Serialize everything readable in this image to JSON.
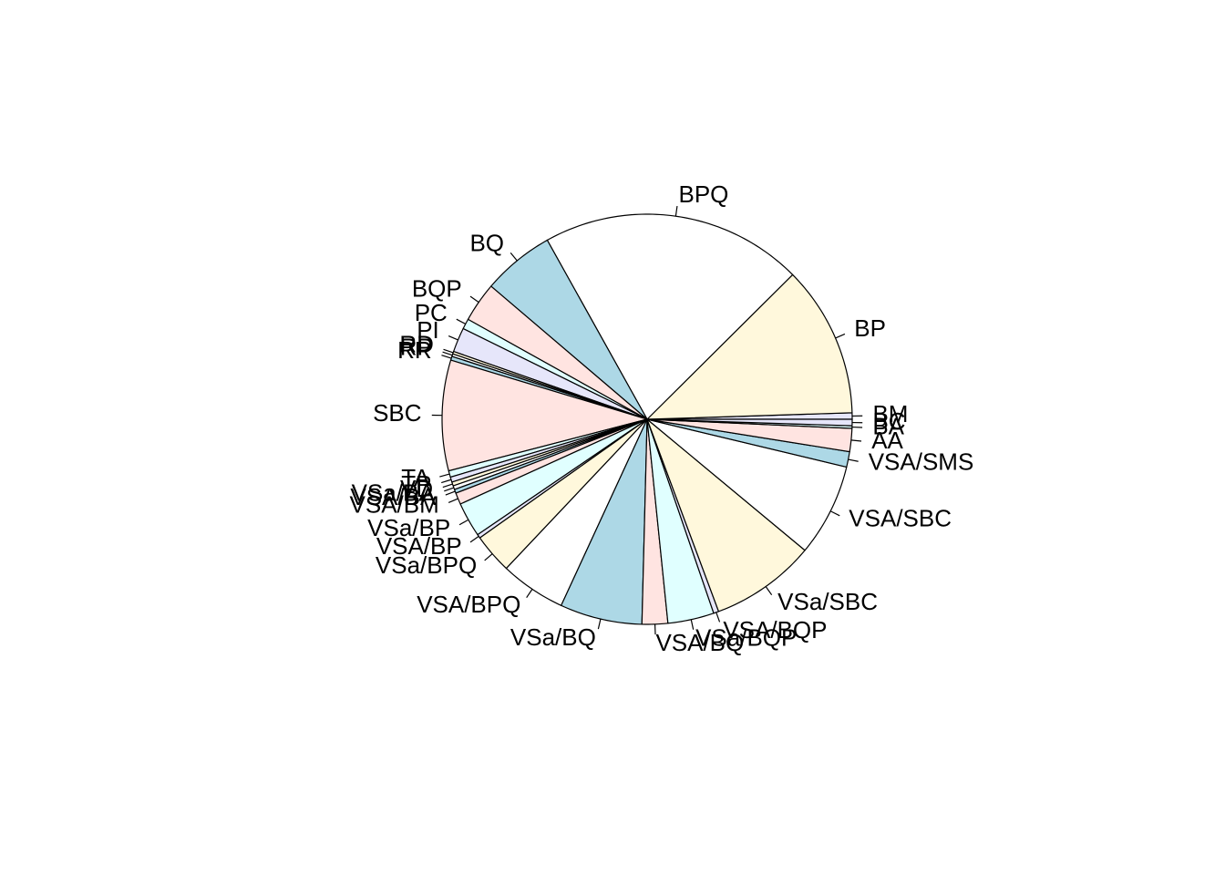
{
  "chart_data": {
    "type": "pie",
    "start_angle_deg": 0,
    "direction": "counterclockwise",
    "palette": [
      "#E6E6FA",
      "#FFF8DC",
      "#FFFFFF",
      "#ADD8E6",
      "#FFE4E1",
      "#E0FFFF"
    ],
    "slices": [
      {
        "label": "BM",
        "value": 0.5
      },
      {
        "label": "BP",
        "value": 11.8
      },
      {
        "label": "BPQ",
        "value": 20.4
      },
      {
        "label": "BQ",
        "value": 5.6
      },
      {
        "label": "BQP",
        "value": 3.1
      },
      {
        "label": "PC",
        "value": 0.8
      },
      {
        "label": "PI",
        "value": 1.9
      },
      {
        "label": "RD",
        "value": 0.2
      },
      {
        "label": "RP",
        "value": 0.2
      },
      {
        "label": "RR",
        "value": 0.3
      },
      {
        "label": "SBC",
        "value": 8.6
      },
      {
        "label": "TA",
        "value": 0.5
      },
      {
        "label": "TP",
        "value": 0.4
      },
      {
        "label": "VD",
        "value": 0.3
      },
      {
        "label": "VSa/BA",
        "value": 0.3
      },
      {
        "label": "VSA/BA",
        "value": 0.3
      },
      {
        "label": "VSA/BM",
        "value": 0.9
      },
      {
        "label": "VSa/BP",
        "value": 2.7
      },
      {
        "label": "VSA/BP",
        "value": 0.3
      },
      {
        "label": "VSa/BPQ",
        "value": 3.1
      },
      {
        "label": "VSA/BPQ",
        "value": 5.1
      },
      {
        "label": "VSa/BQ",
        "value": 6.4
      },
      {
        "label": "VSA/BQ",
        "value": 2.0
      },
      {
        "label": "VSa/BQP",
        "value": 3.6
      },
      {
        "label": "VSA/BQP",
        "value": 0.4
      },
      {
        "label": "VSa/SBC",
        "value": 8.2
      },
      {
        "label": "VSA/SBC",
        "value": 7.2
      },
      {
        "label": "VSA/SMS",
        "value": 1.2
      },
      {
        "label": "AA",
        "value": 1.8
      },
      {
        "label": "BA",
        "value": 0.2
      },
      {
        "label": "BC",
        "value": 0.5
      }
    ]
  }
}
